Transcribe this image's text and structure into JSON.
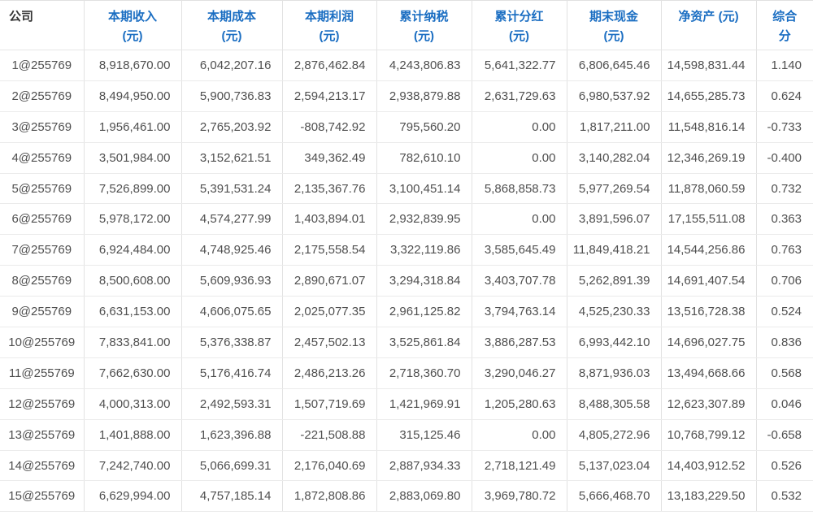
{
  "colors": {
    "header_text_blue": "#1b6ec2",
    "header_text_dark": "#333333",
    "cell_text": "#4f4f4f",
    "border_vertical": "#e2e2e2",
    "border_horizontal": "#ebebeb"
  },
  "table": {
    "columns": [
      {
        "key": "company",
        "label": "公司"
      },
      {
        "key": "income",
        "label": "本期收入\n(元)"
      },
      {
        "key": "cost",
        "label": "本期成本\n(元)"
      },
      {
        "key": "profit",
        "label": "本期利润\n(元)"
      },
      {
        "key": "tax",
        "label": "累计纳税\n(元)"
      },
      {
        "key": "dividend",
        "label": "累计分红\n(元)"
      },
      {
        "key": "cash",
        "label": "期末现金\n(元)"
      },
      {
        "key": "net-assets",
        "label": "净资产 (元)"
      },
      {
        "key": "score",
        "label": "综合\n分"
      }
    ],
    "rows": [
      [
        "1@255769",
        "8,918,670.00",
        "6,042,207.16",
        "2,876,462.84",
        "4,243,806.83",
        "5,641,322.77",
        "6,806,645.46",
        "14,598,831.44",
        "1.140"
      ],
      [
        "2@255769",
        "8,494,950.00",
        "5,900,736.83",
        "2,594,213.17",
        "2,938,879.88",
        "2,631,729.63",
        "6,980,537.92",
        "14,655,285.73",
        "0.624"
      ],
      [
        "3@255769",
        "1,956,461.00",
        "2,765,203.92",
        "-808,742.92",
        "795,560.20",
        "0.00",
        "1,817,211.00",
        "11,548,816.14",
        "-0.733"
      ],
      [
        "4@255769",
        "3,501,984.00",
        "3,152,621.51",
        "349,362.49",
        "782,610.10",
        "0.00",
        "3,140,282.04",
        "12,346,269.19",
        "-0.400"
      ],
      [
        "5@255769",
        "7,526,899.00",
        "5,391,531.24",
        "2,135,367.76",
        "3,100,451.14",
        "5,868,858.73",
        "5,977,269.54",
        "11,878,060.59",
        "0.732"
      ],
      [
        "6@255769",
        "5,978,172.00",
        "4,574,277.99",
        "1,403,894.01",
        "2,932,839.95",
        "0.00",
        "3,891,596.07",
        "17,155,511.08",
        "0.363"
      ],
      [
        "7@255769",
        "6,924,484.00",
        "4,748,925.46",
        "2,175,558.54",
        "3,322,119.86",
        "3,585,645.49",
        "11,849,418.21",
        "14,544,256.86",
        "0.763"
      ],
      [
        "8@255769",
        "8,500,608.00",
        "5,609,936.93",
        "2,890,671.07",
        "3,294,318.84",
        "3,403,707.78",
        "5,262,891.39",
        "14,691,407.54",
        "0.706"
      ],
      [
        "9@255769",
        "6,631,153.00",
        "4,606,075.65",
        "2,025,077.35",
        "2,961,125.82",
        "3,794,763.14",
        "4,525,230.33",
        "13,516,728.38",
        "0.524"
      ],
      [
        "10@255769",
        "7,833,841.00",
        "5,376,338.87",
        "2,457,502.13",
        "3,525,861.84",
        "3,886,287.53",
        "6,993,442.10",
        "14,696,027.75",
        "0.836"
      ],
      [
        "11@255769",
        "7,662,630.00",
        "5,176,416.74",
        "2,486,213.26",
        "2,718,360.70",
        "3,290,046.27",
        "8,871,936.03",
        "13,494,668.66",
        "0.568"
      ],
      [
        "12@255769",
        "4,000,313.00",
        "2,492,593.31",
        "1,507,719.69",
        "1,421,969.91",
        "1,205,280.63",
        "8,488,305.58",
        "12,623,307.89",
        "0.046"
      ],
      [
        "13@255769",
        "1,401,888.00",
        "1,623,396.88",
        "-221,508.88",
        "315,125.46",
        "0.00",
        "4,805,272.96",
        "10,768,799.12",
        "-0.658"
      ],
      [
        "14@255769",
        "7,242,740.00",
        "5,066,699.31",
        "2,176,040.69",
        "2,887,934.33",
        "2,718,121.49",
        "5,137,023.04",
        "14,403,912.52",
        "0.526"
      ],
      [
        "15@255769",
        "6,629,994.00",
        "4,757,185.14",
        "1,872,808.86",
        "2,883,069.80",
        "3,969,780.72",
        "5,666,468.70",
        "13,183,229.50",
        "0.532"
      ]
    ]
  }
}
